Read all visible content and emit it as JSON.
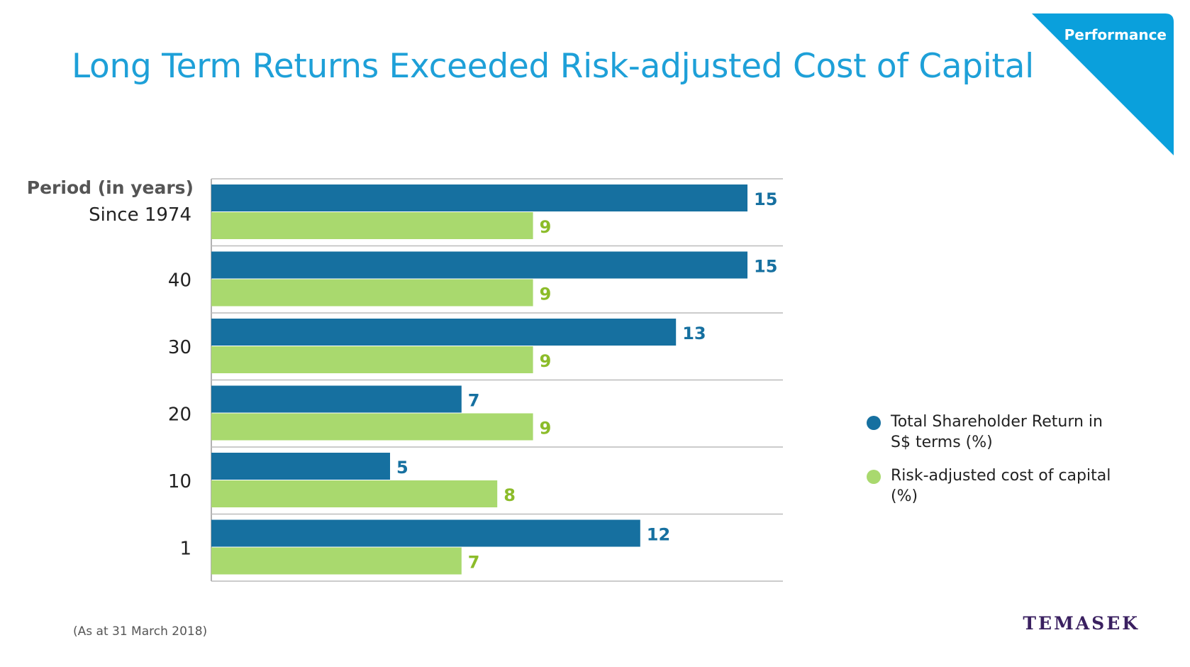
{
  "title": "Long Term Returns Exceeded Risk-adjusted Cost of Capital",
  "corner_tab": {
    "label": "Performance",
    "color": "#0aa0dc"
  },
  "footnote": "(As at 31 March 2018)",
  "brand": "TEMASEK",
  "colors": {
    "tsr": "#1670a0",
    "cost": "#a9d96e",
    "cost_label": "#8cbc2a",
    "title": "#1ea0d8"
  },
  "chart_data": {
    "type": "bar",
    "orientation": "horizontal",
    "category_header": "Period (in years)",
    "categories": [
      "Since 1974",
      "40",
      "30",
      "20",
      "10",
      "1"
    ],
    "series": [
      {
        "name": "Total Shareholder Return in S$ terms (%)",
        "values": [
          15,
          15,
          13,
          7,
          5,
          12
        ]
      },
      {
        "name": "Risk-adjusted cost of capital (%)",
        "values": [
          9,
          9,
          9,
          9,
          8,
          7
        ]
      }
    ],
    "legend": [
      {
        "label": "Total Shareholder Return in S$ terms (%)"
      },
      {
        "label": "Risk-adjusted cost of capital (%)"
      }
    ],
    "legend_position": "right"
  }
}
